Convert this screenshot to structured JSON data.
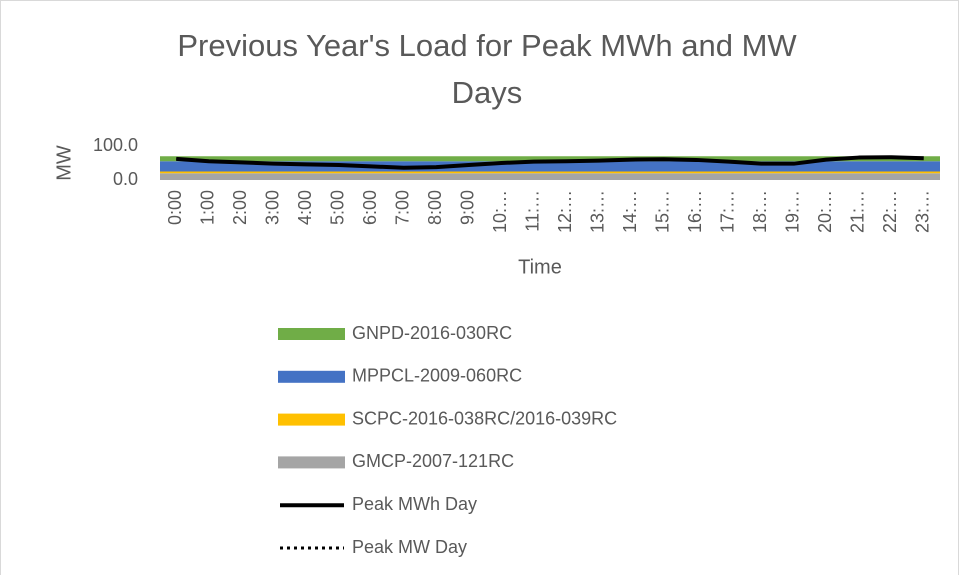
{
  "chart_data": {
    "type": "stacked_area_line",
    "title": "Previous Year's Load for Peak MWh and MW Days",
    "x_label": "Time",
    "y_label": "MW",
    "categories": [
      "0:00",
      "1:00",
      "2:00",
      "3:00",
      "4:00",
      "5:00",
      "6:00",
      "7:00",
      "8:00",
      "9:00",
      "10:…",
      "11:…",
      "12:…",
      "13:…",
      "14:…",
      "15:…",
      "16:…",
      "17:…",
      "18:…",
      "19:…",
      "20:…",
      "21:…",
      "22:…",
      "23:…"
    ],
    "ylim": [
      0,
      100
    ],
    "yticks": [
      {
        "value": 0,
        "label": "0.0"
      },
      {
        "value": 100,
        "label": "100.0"
      }
    ],
    "series": [
      {
        "name": "GNPD-2016-030RC",
        "color": "#70ad47",
        "kind": "area",
        "values": [
          15,
          15,
          15,
          15,
          15,
          15,
          15,
          15,
          15,
          15,
          15,
          15,
          15,
          15,
          15,
          15,
          15,
          15,
          15,
          15,
          15,
          15,
          15,
          15
        ]
      },
      {
        "name": "MPPCL-2009-060RC",
        "color": "#4472c4",
        "kind": "area",
        "values": [
          30,
          30,
          30,
          30,
          30,
          30,
          30,
          30,
          30,
          30,
          30,
          30,
          30,
          30,
          30,
          30,
          30,
          30,
          30,
          30,
          30,
          30,
          30,
          30
        ]
      },
      {
        "name": "SCPC-2016-038RC/2016-039RC",
        "color": "#ffc000",
        "kind": "area",
        "values": [
          5,
          5,
          5,
          5,
          5,
          5,
          5,
          5,
          5,
          5,
          5,
          5,
          5,
          5,
          5,
          5,
          5,
          5,
          5,
          5,
          5,
          5,
          5,
          5
        ]
      },
      {
        "name": "GMCP-2007-121RC",
        "color": "#a5a5a5",
        "kind": "area",
        "values": [
          20,
          20,
          20,
          20,
          20,
          20,
          20,
          20,
          20,
          20,
          20,
          20,
          20,
          20,
          20,
          20,
          20,
          20,
          20,
          20,
          20,
          20,
          20,
          20
        ]
      },
      {
        "name": "Peak MWh Day",
        "color": "#000000",
        "kind": "line",
        "values": [
          62,
          55,
          52,
          48,
          46,
          44,
          40,
          36,
          38,
          44,
          50,
          54,
          55,
          57,
          60,
          61,
          59,
          54,
          48,
          48,
          60,
          66,
          67,
          64
        ]
      },
      {
        "name": "Peak MW Day",
        "color": "#000000",
        "kind": "dotted",
        "values": [
          62,
          55,
          52,
          48,
          46,
          44,
          40,
          36,
          38,
          44,
          50,
          54,
          55,
          57,
          60,
          61,
          59,
          54,
          48,
          48,
          60,
          66,
          67,
          64
        ]
      }
    ]
  }
}
